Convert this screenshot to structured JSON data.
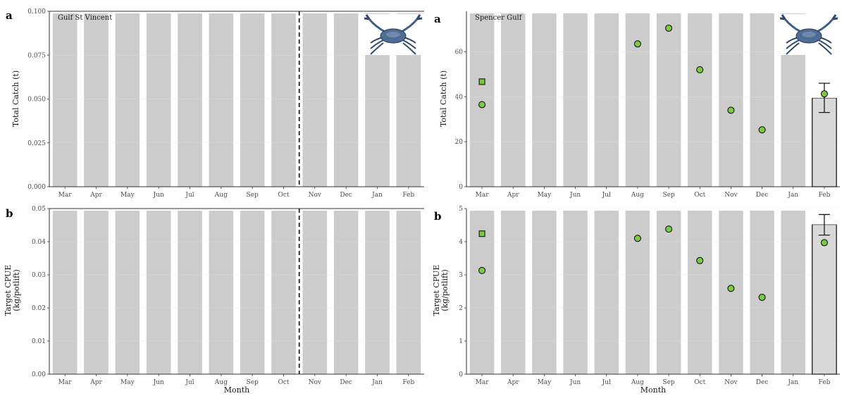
{
  "chart_data": [
    {
      "id": "gsv-catch",
      "type": "bar",
      "panel_letter": "a",
      "region": "Gulf St Vincent",
      "xlabel": "",
      "ylabel": "Total Catch (t)",
      "categories": [
        "Mar",
        "Apr",
        "May",
        "Jun",
        "Jul",
        "Aug",
        "Sep",
        "Oct",
        "Nov",
        "Dec",
        "Jan",
        "Feb"
      ],
      "ylim": [
        0,
        0.1
      ],
      "yticks": [
        "0.000",
        "0.025",
        "0.050",
        "0.075",
        "0.100"
      ],
      "closure_line_between": [
        "Oct",
        "Nov"
      ],
      "series": [],
      "image": "blue-crab"
    },
    {
      "id": "sg-catch",
      "type": "bar",
      "panel_letter": "a",
      "region": "Spencer Gulf",
      "xlabel": "",
      "ylabel": "Total Catch (t)",
      "categories": [
        "Mar",
        "Apr",
        "May",
        "Jun",
        "Jul",
        "Aug",
        "Sep",
        "Oct",
        "Nov",
        "Dec",
        "Jan",
        "Feb"
      ],
      "ylim": [
        0,
        78
      ],
      "yticks": [
        "0",
        "20",
        "40",
        "60"
      ],
      "bar": {
        "category": "Feb",
        "value": 39.5,
        "error": [
          33,
          46
        ]
      },
      "series": [
        {
          "marker": "circle",
          "color": "#7ac943",
          "points": [
            [
              "Mar",
              36.5
            ],
            [
              "Aug",
              63.5
            ],
            [
              "Sep",
              70.5
            ],
            [
              "Oct",
              52
            ],
            [
              "Nov",
              34
            ],
            [
              "Dec",
              25.3
            ],
            [
              "Feb",
              41.3
            ]
          ]
        },
        {
          "marker": "square",
          "color": "#7ac943",
          "points": [
            [
              "Mar",
              46.7
            ]
          ]
        }
      ],
      "image": "blue-crab"
    },
    {
      "id": "gsv-cpue",
      "type": "bar",
      "panel_letter": "b",
      "region": "",
      "xlabel": "Month",
      "ylabel": "Target CPUE (kg/potlift)",
      "ylabel_lines": [
        "Target CPUE",
        "(kg/potlift)"
      ],
      "categories": [
        "Mar",
        "Apr",
        "May",
        "Jun",
        "Jul",
        "Aug",
        "Sep",
        "Oct",
        "Nov",
        "Dec",
        "Jan",
        "Feb"
      ],
      "ylim": [
        0,
        0.05
      ],
      "yticks": [
        "0.00",
        "0.01",
        "0.02",
        "0.03",
        "0.04",
        "0.05"
      ],
      "closure_line_between": [
        "Oct",
        "Nov"
      ],
      "series": []
    },
    {
      "id": "sg-cpue",
      "type": "bar",
      "panel_letter": "b",
      "region": "",
      "xlabel": "Month",
      "ylabel": "Target CPUE (kg/potlift)",
      "ylabel_lines": [
        "Target CPUE",
        "(kg/potlift)"
      ],
      "categories": [
        "Mar",
        "Apr",
        "May",
        "Jun",
        "Jul",
        "Aug",
        "Sep",
        "Oct",
        "Nov",
        "Dec",
        "Jan",
        "Feb"
      ],
      "ylim": [
        0,
        5
      ],
      "yticks": [
        "0",
        "1",
        "2",
        "3",
        "4",
        "5"
      ],
      "bar": {
        "category": "Feb",
        "value": 4.52,
        "error": [
          4.2,
          4.82
        ]
      },
      "series": [
        {
          "marker": "circle",
          "color": "#7ac943",
          "points": [
            [
              "Mar",
              3.13
            ],
            [
              "Aug",
              4.1
            ],
            [
              "Sep",
              4.38
            ],
            [
              "Oct",
              3.43
            ],
            [
              "Nov",
              2.59
            ],
            [
              "Dec",
              2.32
            ],
            [
              "Feb",
              3.97
            ]
          ]
        },
        {
          "marker": "square",
          "color": "#7ac943",
          "points": [
            [
              "Mar",
              4.24
            ]
          ]
        }
      ]
    }
  ]
}
